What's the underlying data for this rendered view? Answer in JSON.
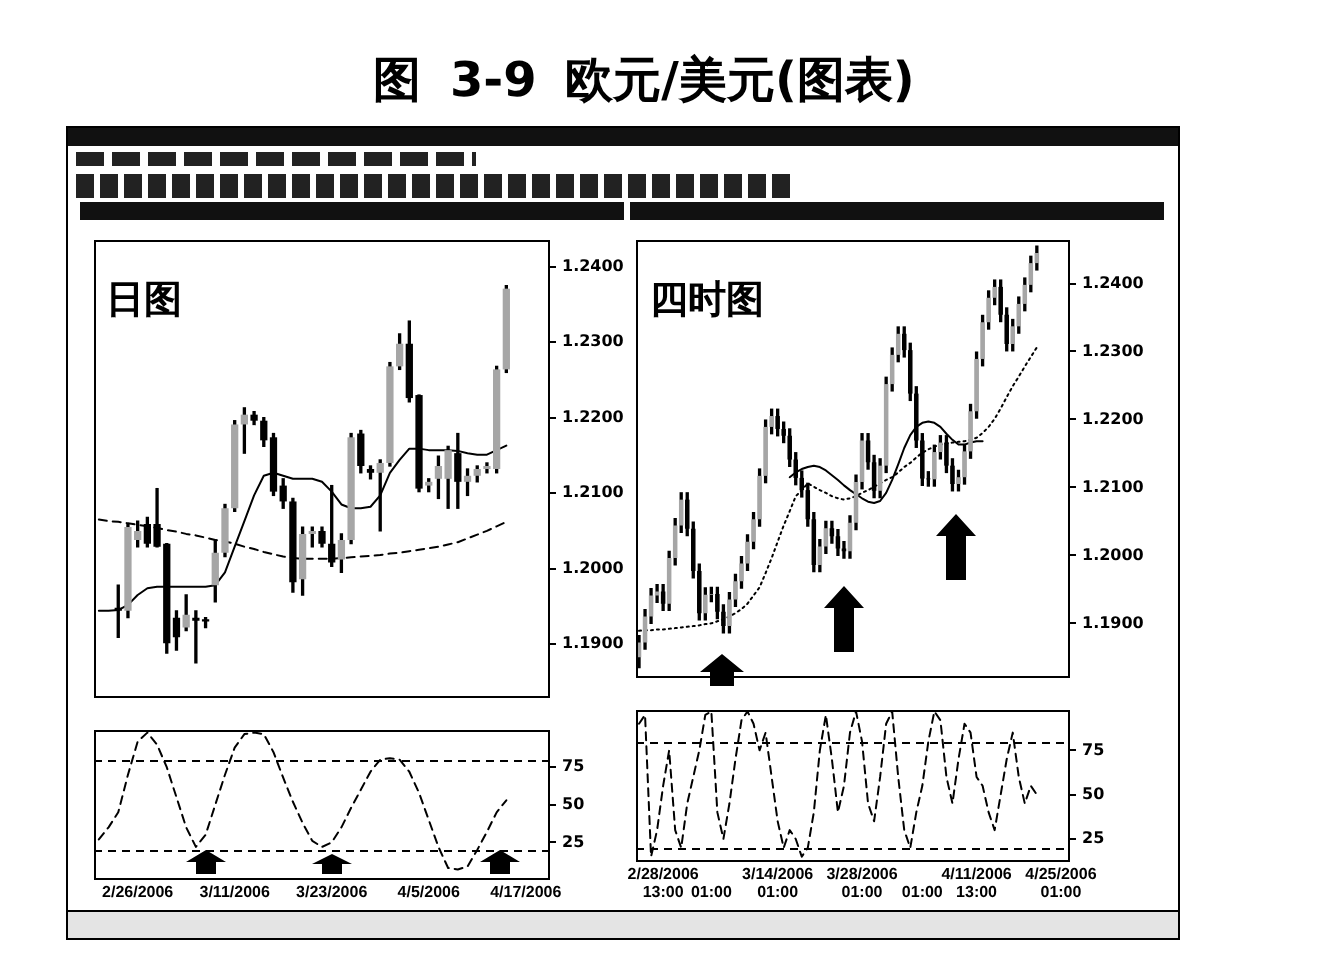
{
  "chart_data": [
    {
      "type": "candlestick",
      "title": "图 3-9 欧元/美元(图表)",
      "annotations": [
        "日图"
      ],
      "categories": [
        null,
        null,
        null,
        null,
        null,
        null,
        null,
        null,
        null,
        null,
        null,
        null,
        null,
        null,
        null,
        null,
        null,
        null,
        null,
        null,
        null,
        null,
        null,
        null,
        null,
        null,
        null,
        null,
        null,
        null,
        null,
        null,
        null,
        null,
        null,
        null,
        null,
        null,
        null,
        null,
        null,
        null,
        null,
        null,
        null,
        null,
        null
      ],
      "ohlc": [
        null,
        null,
        [
          1.1948,
          1.1978,
          1.1909,
          1.1944
        ],
        [
          1.1944,
          1.2059,
          1.1935,
          1.2055
        ],
        [
          1.2038,
          1.2063,
          1.2029,
          1.205
        ],
        [
          1.2059,
          1.2068,
          1.2029,
          1.2033
        ],
        [
          1.2059,
          1.2106,
          1.2029,
          1.2029
        ],
        [
          1.2033,
          1.2033,
          1.1888,
          1.1901
        ],
        [
          1.1935,
          1.1944,
          1.1892,
          1.1909
        ],
        [
          1.1922,
          1.1965,
          1.1918,
          1.1939
        ],
        [
          1.1935,
          1.1944,
          1.1875,
          1.1931
        ],
        [
          1.1933,
          1.1935,
          1.1922,
          1.193
        ],
        [
          1.1978,
          1.2038,
          1.1956,
          1.2021
        ],
        [
          1.2021,
          1.2085,
          1.2016,
          1.208
        ],
        [
          1.208,
          1.2196,
          1.2076,
          1.2191
        ],
        [
          1.2191,
          1.2213,
          1.2153,
          1.2204
        ],
        [
          1.2204,
          1.2208,
          1.2191,
          1.2196
        ],
        [
          1.2196,
          1.22,
          1.2162,
          1.217
        ],
        [
          1.2174,
          1.2179,
          1.2097,
          1.2102
        ],
        [
          1.211,
          1.2119,
          1.208,
          1.2089
        ],
        [
          1.2089,
          1.2093,
          1.1969,
          1.1982
        ],
        [
          1.1986,
          1.2055,
          1.1965,
          1.2046
        ],
        [
          1.2046,
          1.2055,
          1.2029,
          1.205
        ],
        [
          1.205,
          1.2055,
          1.2029,
          1.2033
        ],
        [
          1.2033,
          1.211,
          1.2003,
          1.2008
        ],
        [
          1.2012,
          1.2046,
          1.1995,
          1.2038
        ],
        [
          1.2038,
          1.2179,
          1.2033,
          1.2174
        ],
        [
          1.2179,
          1.2183,
          1.2127,
          1.2136
        ],
        [
          1.2132,
          1.2136,
          1.2119,
          1.2127
        ],
        [
          1.2127,
          1.2144,
          1.205,
          1.214
        ],
        [
          1.214,
          1.2273,
          1.2136,
          1.2268
        ],
        [
          1.2268,
          1.2311,
          1.2264,
          1.2298
        ],
        [
          1.2298,
          1.2328,
          1.2221,
          1.2226
        ],
        [
          1.223,
          1.223,
          1.2102,
          1.2106
        ],
        [
          1.211,
          1.2119,
          1.2102,
          1.2115
        ],
        [
          1.2119,
          1.2149,
          1.2093,
          1.2136
        ],
        [
          1.2119,
          1.2162,
          1.208,
          1.2157
        ],
        [
          1.2153,
          1.2179,
          1.208,
          1.2115
        ],
        [
          1.2115,
          1.2132,
          1.2097,
          1.2123
        ],
        [
          1.2123,
          1.2136,
          1.2115,
          1.2132
        ],
        [
          1.2132,
          1.214,
          1.2127,
          1.2136
        ],
        [
          1.2132,
          1.2268,
          1.2127,
          1.2264
        ],
        [
          1.2264,
          1.2375,
          1.226,
          1.2371
        ],
        null,
        null,
        null,
        null
      ],
      "series": [
        {
          "type": "line",
          "color": "#000000",
          "line_style": "solid",
          "values": [
            1.1944,
            1.1944,
            1.1945,
            1.1952,
            1.1965,
            1.1974,
            1.1976,
            1.1976,
            1.1976,
            1.1976,
            1.1976,
            1.1976,
            1.1978,
            1.1995,
            1.2029,
            1.2063,
            1.2097,
            1.2123,
            1.2127,
            1.2123,
            1.2119,
            1.2119,
            1.2119,
            1.2115,
            1.2102,
            1.2085,
            1.208,
            1.208,
            1.2082,
            1.2097,
            1.2127,
            1.2144,
            1.2159,
            1.2159,
            1.2157,
            1.2157,
            1.2157,
            1.2156,
            1.2153,
            1.2151,
            1.2151,
            1.2157,
            1.2163,
            null,
            null,
            null,
            null
          ]
        },
        {
          "type": "line",
          "color": "#000000",
          "line_style": "dashed",
          "values": [
            1.2065,
            1.2063,
            1.2062,
            1.206,
            1.2058,
            1.2056,
            1.2054,
            1.2051,
            1.2049,
            1.2046,
            1.2044,
            1.2041,
            1.2038,
            1.2036,
            1.2033,
            1.2029,
            1.2026,
            1.2022,
            1.2019,
            1.2016,
            1.2014,
            1.2013,
            1.2013,
            1.2013,
            1.2013,
            1.2014,
            1.2015,
            1.2016,
            1.2017,
            1.2018,
            1.202,
            1.2021,
            1.2023,
            1.2025,
            1.2027,
            1.2029,
            1.2032,
            1.2035,
            1.204,
            1.2045,
            1.205,
            1.2056,
            1.2062,
            null,
            null,
            null,
            null
          ]
        }
      ],
      "ylim": [
        1.1828,
        1.2436
      ],
      "yticks": [
        {
          "value": 1.19,
          "label": "1.1900"
        },
        {
          "value": 1.2,
          "label": "1.2000"
        },
        {
          "value": 1.21,
          "label": "1.2100"
        },
        {
          "value": 1.22,
          "label": "1.2200"
        },
        {
          "value": 1.23,
          "label": "1.2300"
        },
        {
          "value": 1.24,
          "label": "1.2400"
        }
      ]
    },
    {
      "type": "candlestick",
      "annotations": [
        "四时图"
      ],
      "categories": [
        null,
        null,
        null,
        null,
        null,
        null,
        null,
        null,
        null,
        null,
        null,
        null,
        null,
        null,
        null,
        null,
        null,
        null,
        null,
        null,
        null,
        null,
        null,
        null,
        null,
        null,
        null,
        null,
        null,
        null,
        null,
        null,
        null,
        null,
        null,
        null,
        null,
        null,
        null,
        null,
        null,
        null,
        null,
        null,
        null,
        null,
        null,
        null,
        null,
        null,
        null,
        null,
        null,
        null,
        null,
        null,
        null,
        null,
        null,
        null,
        null,
        null,
        null,
        null,
        null,
        null,
        null,
        null,
        null,
        null,
        null,
        null
      ],
      "ohlc": [
        [
          1.185,
          1.1882,
          1.1835,
          1.1872
        ],
        [
          1.1872,
          1.192,
          1.1862,
          1.191
        ],
        [
          1.191,
          1.1951,
          1.19,
          1.1941
        ],
        [
          1.1941,
          1.1957,
          1.1931,
          1.1947
        ],
        [
          1.1947,
          1.1957,
          1.1919,
          1.1929
        ],
        [
          1.1929,
          1.2006,
          1.1919,
          1.1996
        ],
        [
          1.1996,
          1.2054,
          1.1986,
          1.2044
        ],
        [
          1.2044,
          1.2092,
          1.2034,
          1.2082
        ],
        [
          1.2082,
          1.2092,
          1.2029,
          1.2039
        ],
        [
          1.2039,
          1.2049,
          1.1967,
          1.1977
        ],
        [
          1.1977,
          1.1987,
          1.1905,
          1.1915
        ],
        [
          1.1915,
          1.1952,
          1.1905,
          1.1942
        ],
        [
          1.1942,
          1.1953,
          1.1932,
          1.1943
        ],
        [
          1.1943,
          1.1953,
          1.1907,
          1.1917
        ],
        [
          1.1917,
          1.1927,
          1.1886,
          1.1896
        ],
        [
          1.1896,
          1.1945,
          1.1886,
          1.1935
        ],
        [
          1.1935,
          1.1972,
          1.1925,
          1.1962
        ],
        [
          1.1962,
          1.1998,
          1.1952,
          1.1988
        ],
        [
          1.1988,
          1.203,
          1.1978,
          1.202
        ],
        [
          1.202,
          1.2063,
          1.201,
          1.2053
        ],
        [
          1.2053,
          1.2127,
          1.2043,
          1.2117
        ],
        [
          1.2117,
          1.2199,
          1.2107,
          1.2189
        ],
        [
          1.2189,
          1.2215,
          1.2179,
          1.2205
        ],
        [
          1.2205,
          1.2215,
          1.2176,
          1.2186
        ],
        [
          1.2186,
          1.2196,
          1.2166,
          1.2176
        ],
        [
          1.2176,
          1.2186,
          1.2131,
          1.2141
        ],
        [
          1.2141,
          1.2151,
          1.2104,
          1.2114
        ],
        [
          1.2114,
          1.2124,
          1.2086,
          1.2096
        ],
        [
          1.2096,
          1.2106,
          1.2043,
          1.2053
        ],
        [
          1.2053,
          1.2063,
          1.1976,
          1.1986
        ],
        [
          1.1986,
          1.2023,
          1.1976,
          1.2013
        ],
        [
          1.2013,
          1.205,
          1.2003,
          1.204
        ],
        [
          1.204,
          1.205,
          1.2018,
          1.2028
        ],
        [
          1.2028,
          1.2038,
          1.2,
          1.201
        ],
        [
          1.201,
          1.202,
          1.1996,
          1.2006
        ],
        [
          1.2006,
          1.2058,
          1.1996,
          1.2048
        ],
        [
          1.2048,
          1.2118,
          1.2038,
          1.2108
        ],
        [
          1.2108,
          1.2179,
          1.2098,
          1.2169
        ],
        [
          1.2169,
          1.2179,
          1.2127,
          1.2137
        ],
        [
          1.2137,
          1.2147,
          1.2085,
          1.2095
        ],
        [
          1.2095,
          1.2142,
          1.2085,
          1.2132
        ],
        [
          1.2132,
          1.2262,
          1.2122,
          1.2252
        ],
        [
          1.2252,
          1.2305,
          1.2242,
          1.2295
        ],
        [
          1.2295,
          1.2336,
          1.2285,
          1.2326
        ],
        [
          1.2326,
          1.2336,
          1.2292,
          1.2302
        ],
        [
          1.2302,
          1.2312,
          1.2228,
          1.2238
        ],
        [
          1.2238,
          1.2248,
          1.2159,
          1.2169
        ],
        [
          1.2169,
          1.2179,
          1.2103,
          1.2113
        ],
        [
          1.2113,
          1.2123,
          1.2102,
          1.2112
        ],
        [
          1.2112,
          1.2162,
          1.2102,
          1.2152
        ],
        [
          1.2152,
          1.2176,
          1.2142,
          1.2166
        ],
        [
          1.2166,
          1.2176,
          1.2122,
          1.2132
        ],
        [
          1.2132,
          1.2142,
          1.2095,
          1.2105
        ],
        [
          1.2105,
          1.2125,
          1.2095,
          1.2115
        ],
        [
          1.2115,
          1.2163,
          1.2105,
          1.2153
        ],
        [
          1.2153,
          1.2222,
          1.2143,
          1.2212
        ],
        [
          1.2212,
          1.2299,
          1.2202,
          1.2289
        ],
        [
          1.2289,
          1.2353,
          1.2279,
          1.2343
        ],
        [
          1.2343,
          1.2389,
          1.2333,
          1.2379
        ],
        [
          1.2379,
          1.2405,
          1.2369,
          1.2395
        ],
        [
          1.2395,
          1.2405,
          1.2344,
          1.2354
        ],
        [
          1.2354,
          1.2364,
          1.2301,
          1.2311
        ],
        [
          1.2311,
          1.2347,
          1.2301,
          1.2337
        ],
        [
          1.2337,
          1.238,
          1.2327,
          1.237
        ],
        [
          1.237,
          1.2408,
          1.236,
          1.2398
        ],
        [
          1.2398,
          1.244,
          1.2388,
          1.243
        ],
        [
          1.243,
          1.2455,
          1.242,
          1.2445
        ],
        null,
        null,
        null,
        null,
        null
      ],
      "series": [
        {
          "type": "line",
          "color": "#000000",
          "line_style": "solid",
          "values": [
            null,
            null,
            null,
            null,
            null,
            null,
            null,
            null,
            null,
            null,
            null,
            null,
            null,
            null,
            null,
            null,
            null,
            null,
            null,
            null,
            null,
            null,
            null,
            null,
            null,
            1.2115,
            1.2122,
            1.2127,
            1.213,
            1.2132,
            1.213,
            1.2125,
            1.2118,
            1.2111,
            1.2103,
            1.2096,
            1.209,
            1.2084,
            1.2079,
            1.2077,
            1.208,
            1.2092,
            1.2111,
            1.2134,
            1.2158,
            1.2177,
            1.2189,
            1.2195,
            1.2197,
            1.2195,
            1.2189,
            1.2179,
            1.217,
            1.2163,
            1.2163,
            1.2166,
            1.2168,
            1.2168,
            null,
            null,
            null,
            null,
            null,
            null,
            null,
            null,
            null,
            null,
            null,
            null,
            null,
            null
          ]
        },
        {
          "type": "line",
          "color": "#000000",
          "line_style": "dotted",
          "values": [
            1.1889,
            1.189,
            1.189,
            1.1891,
            1.1891,
            1.1892,
            1.1893,
            1.1894,
            1.1895,
            1.1896,
            1.1897,
            1.1899,
            1.19,
            1.1903,
            1.1906,
            1.191,
            1.1915,
            1.1921,
            1.1929,
            1.1941,
            1.1953,
            1.1974,
            1.1996,
            1.202,
            1.2044,
            1.2065,
            1.2087,
            1.2096,
            1.2106,
            1.2101,
            1.2096,
            1.2092,
            1.2087,
            1.2084,
            1.2082,
            1.2084,
            1.2087,
            1.2092,
            1.2096,
            1.2101,
            1.2106,
            1.2111,
            1.2115,
            1.2122,
            1.213,
            1.2136,
            1.2144,
            1.2151,
            1.2156,
            1.216,
            1.2163,
            1.2165,
            1.2166,
            1.2167,
            1.2168,
            1.217,
            1.2173,
            1.218,
            1.2189,
            1.2201,
            1.2216,
            1.2233,
            1.2249,
            1.2263,
            1.2278,
            1.2292,
            1.2306,
            null,
            null,
            null,
            null,
            null
          ]
        }
      ],
      "ylim": [
        1.1819,
        1.2464
      ],
      "yticks": [
        {
          "value": 1.19,
          "label": "1.1900"
        },
        {
          "value": 1.2,
          "label": "1.2000"
        },
        {
          "value": 1.21,
          "label": "1.2100"
        },
        {
          "value": 1.22,
          "label": "1.2200"
        },
        {
          "value": 1.23,
          "label": "1.2300"
        },
        {
          "value": 1.24,
          "label": "1.2400"
        }
      ]
    },
    {
      "type": "line",
      "categories": [
        null,
        null,
        null,
        null,
        "2/26/2006",
        null,
        null,
        null,
        null,
        null,
        null,
        null,
        null,
        null,
        "3/11/2006",
        null,
        null,
        null,
        null,
        null,
        null,
        null,
        null,
        null,
        "3/23/2006",
        null,
        null,
        null,
        null,
        null,
        null,
        null,
        null,
        null,
        "4/5/2006",
        null,
        null,
        null,
        null,
        null,
        null,
        null,
        null,
        null,
        "4/17/2006",
        null,
        null
      ],
      "values": [
        27,
        35,
        45,
        70,
        92,
        98,
        90,
        75,
        55,
        35,
        22,
        30,
        50,
        70,
        88,
        97,
        98,
        97,
        85,
        68,
        52,
        38,
        26,
        22,
        25,
        35,
        48,
        60,
        72,
        80,
        81,
        80,
        72,
        58,
        40,
        22,
        8,
        7,
        9,
        20,
        32,
        45,
        53,
        null,
        null,
        null,
        null
      ],
      "color": "#000000",
      "line_style": "dashed",
      "ylim": [
        0,
        100
      ],
      "yticks": [
        25,
        50,
        75
      ],
      "ref_lines": [
        {
          "axis": "y",
          "value": 80,
          "line_style": "dashed"
        },
        {
          "axis": "y",
          "value": 20,
          "line_style": "dashed"
        }
      ]
    },
    {
      "type": "line",
      "categories": [
        null,
        null,
        null,
        null,
        "2/28/2006 13:00",
        null,
        null,
        null,
        null,
        null,
        null,
        null,
        "01:00",
        null,
        null,
        null,
        null,
        null,
        null,
        null,
        null,
        null,
        null,
        "3/14/2006 01:00",
        null,
        null,
        null,
        null,
        null,
        null,
        null,
        null,
        null,
        null,
        null,
        null,
        null,
        "3/28/2006 01:00",
        null,
        null,
        null,
        null,
        null,
        null,
        null,
        null,
        null,
        "01:00",
        null,
        null,
        null,
        null,
        null,
        null,
        null,
        null,
        "4/11/2006 13:00",
        null,
        null,
        null,
        null,
        null,
        null,
        null,
        null,
        null,
        null,
        null,
        null,
        null,
        "4/25/2006 01:00",
        null
      ],
      "values": [
        90,
        95,
        15,
        30,
        55,
        75,
        30,
        20,
        45,
        60,
        75,
        95,
        97,
        40,
        25,
        45,
        70,
        92,
        97,
        90,
        75,
        85,
        60,
        35,
        20,
        30,
        25,
        15,
        20,
        40,
        75,
        95,
        70,
        40,
        55,
        85,
        97,
        80,
        45,
        35,
        60,
        90,
        97,
        60,
        30,
        20,
        40,
        55,
        80,
        97,
        92,
        60,
        45,
        70,
        90,
        85,
        60,
        55,
        40,
        30,
        50,
        70,
        85,
        60,
        45,
        55,
        50,
        null,
        null,
        null,
        null,
        null
      ],
      "color": "#000000",
      "line_style": "dashed",
      "ylim": [
        12,
        98
      ],
      "yticks": [
        25,
        50,
        75
      ],
      "ref_lines": [
        {
          "axis": "y",
          "value": 80,
          "line_style": "dashed"
        },
        {
          "axis": "y",
          "value": 20,
          "line_style": "dashed"
        }
      ]
    }
  ]
}
